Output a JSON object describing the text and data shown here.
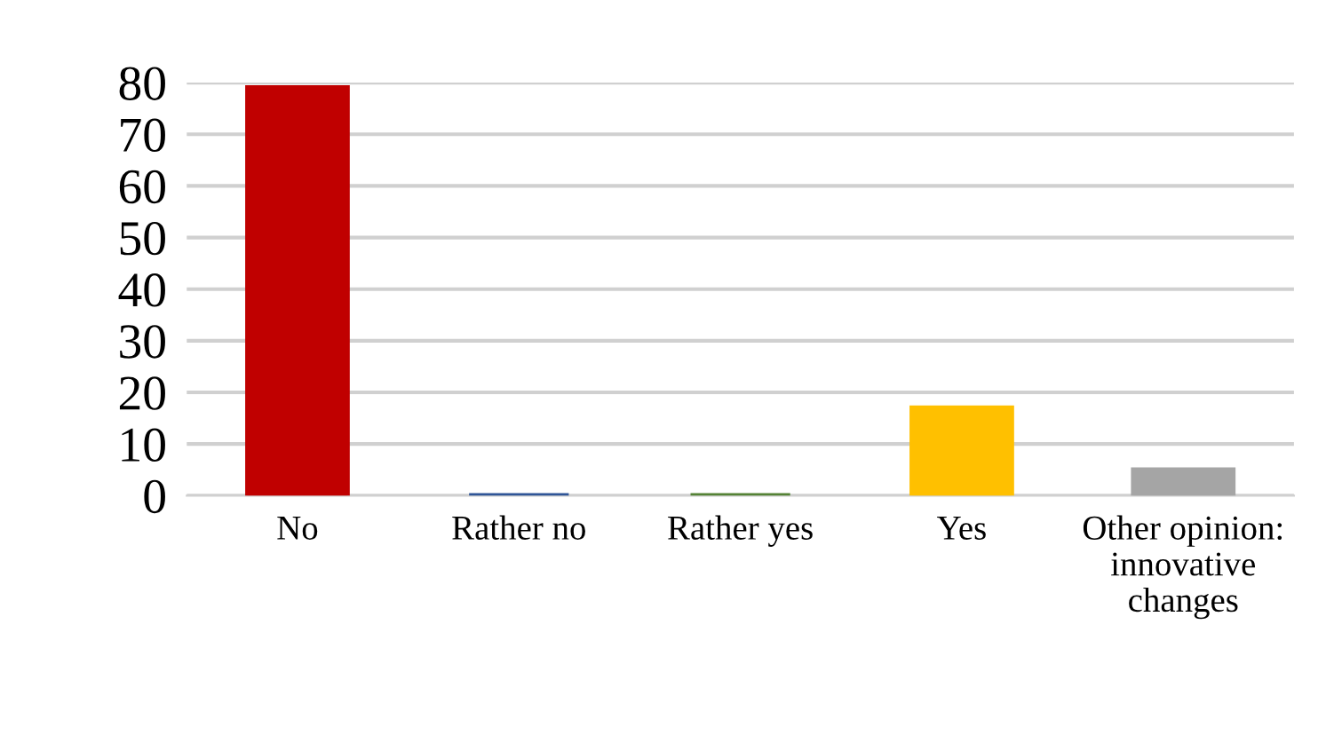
{
  "chart_data": {
    "type": "bar",
    "categories": [
      "No",
      "Rather no",
      "Rather yes",
      "Yes",
      "Other opinion:\ninnovative\nchanges"
    ],
    "values": [
      79,
      0,
      0,
      17,
      5
    ],
    "colors": [
      "#c00000",
      "#2f5597",
      "#548235",
      "#ffc000",
      "#a5a5a5"
    ],
    "ylim": [
      0,
      80
    ],
    "yticks": [
      0,
      10,
      20,
      30,
      40,
      50,
      60,
      70,
      80
    ],
    "grid": "y"
  }
}
